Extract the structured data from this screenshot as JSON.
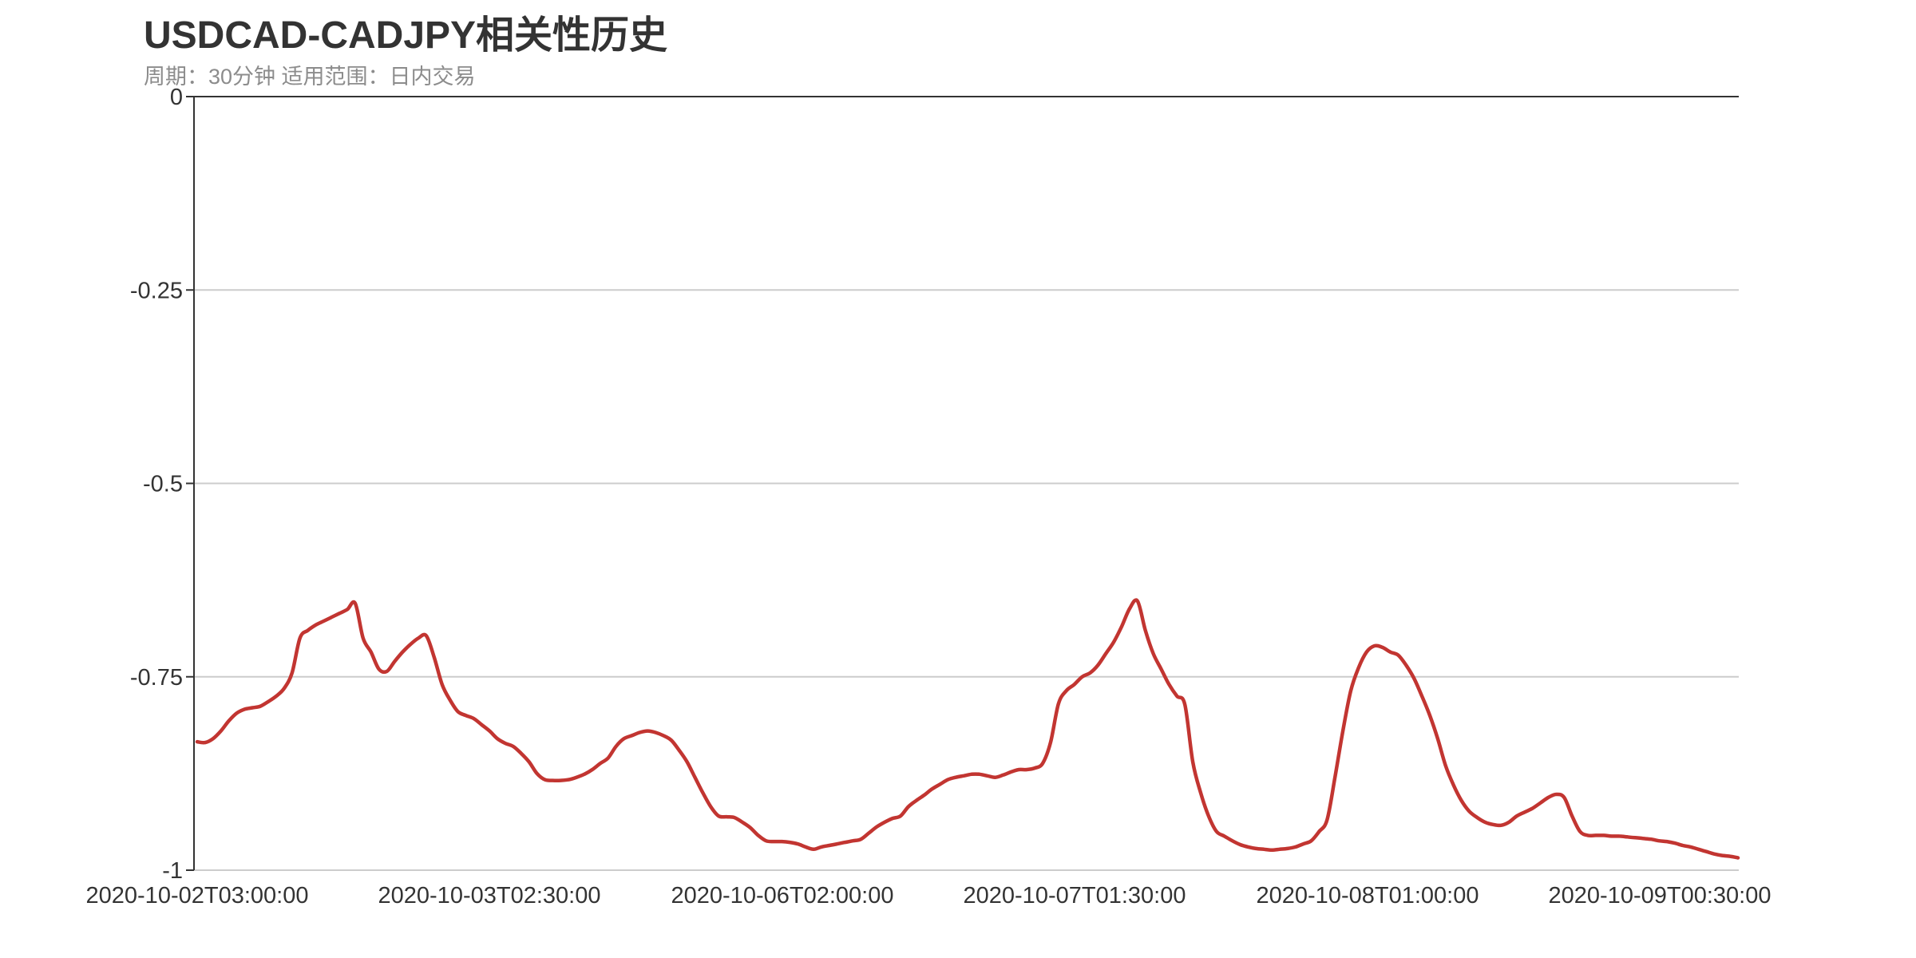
{
  "chart_data": {
    "type": "line",
    "title": "USDCAD-CADJPY相关性历史",
    "subtitle": "周期：30分钟 适用范围：日内交易",
    "xlabel": "",
    "ylabel": "",
    "ylim": [
      -1,
      0
    ],
    "y_ticks": [
      0,
      -0.25,
      -0.5,
      -0.75,
      -1
    ],
    "y_tick_labels": [
      "0",
      "-0.25",
      "-0.5",
      "-0.75",
      "-1"
    ],
    "x_tick_labels": [
      "2020-10-02T03:00:00",
      "2020-10-03T02:30:00",
      "2020-10-06T02:00:00",
      "2020-10-07T01:30:00",
      "2020-10-08T01:00:00",
      "2020-10-09T00:30:00"
    ],
    "grid": true,
    "line_color": "#c23531",
    "series": [
      {
        "values": [
          -0.834,
          -0.835,
          -0.83,
          -0.82,
          -0.807,
          -0.797,
          -0.792,
          -0.79,
          -0.788,
          -0.782,
          -0.775,
          -0.765,
          -0.745,
          -0.7,
          -0.69,
          -0.683,
          -0.678,
          -0.673,
          -0.668,
          -0.663,
          -0.655,
          -0.7,
          -0.718,
          -0.74,
          -0.743,
          -0.73,
          -0.718,
          -0.708,
          -0.7,
          -0.697,
          -0.725,
          -0.76,
          -0.78,
          -0.795,
          -0.8,
          -0.804,
          -0.812,
          -0.82,
          -0.83,
          -0.836,
          -0.84,
          -0.849,
          -0.86,
          -0.875,
          -0.883,
          -0.884,
          -0.884,
          -0.883,
          -0.88,
          -0.876,
          -0.87,
          -0.862,
          -0.855,
          -0.84,
          -0.83,
          -0.826,
          -0.822,
          -0.82,
          -0.822,
          -0.826,
          -0.832,
          -0.845,
          -0.86,
          -0.88,
          -0.9,
          -0.918,
          -0.93,
          -0.931,
          -0.932,
          -0.938,
          -0.945,
          -0.955,
          -0.962,
          -0.963,
          -0.963,
          -0.964,
          -0.966,
          -0.97,
          -0.973,
          -0.97,
          -0.968,
          -0.966,
          -0.964,
          -0.962,
          -0.96,
          -0.952,
          -0.944,
          -0.938,
          -0.933,
          -0.93,
          -0.918,
          -0.91,
          -0.903,
          -0.895,
          -0.889,
          -0.883,
          -0.88,
          -0.878,
          -0.876,
          -0.876,
          -0.878,
          -0.88,
          -0.877,
          -0.873,
          -0.87,
          -0.87,
          -0.868,
          -0.862,
          -0.835,
          -0.785,
          -0.768,
          -0.76,
          -0.75,
          -0.745,
          -0.735,
          -0.72,
          -0.705,
          -0.685,
          -0.662,
          -0.652,
          -0.69,
          -0.72,
          -0.74,
          -0.76,
          -0.775,
          -0.786,
          -0.86,
          -0.9,
          -0.93,
          -0.95,
          -0.956,
          -0.962,
          -0.967,
          -0.97,
          -0.972,
          -0.973,
          -0.974,
          -0.973,
          -0.972,
          -0.97,
          -0.966,
          -0.962,
          -0.95,
          -0.935,
          -0.88,
          -0.82,
          -0.768,
          -0.738,
          -0.718,
          -0.71,
          -0.712,
          -0.718,
          -0.722,
          -0.735,
          -0.752,
          -0.775,
          -0.8,
          -0.83,
          -0.865,
          -0.89,
          -0.91,
          -0.924,
          -0.932,
          -0.938,
          -0.941,
          -0.942,
          -0.938,
          -0.93,
          -0.925,
          -0.92,
          -0.913,
          -0.906,
          -0.902,
          -0.906,
          -0.93,
          -0.95,
          -0.955,
          -0.955,
          -0.955,
          -0.956,
          -0.956,
          -0.957,
          -0.958,
          -0.959,
          -0.96,
          -0.962,
          -0.963,
          -0.965,
          -0.968,
          -0.97,
          -0.973,
          -0.976,
          -0.979,
          -0.981,
          -0.982,
          -0.984
        ]
      }
    ]
  }
}
